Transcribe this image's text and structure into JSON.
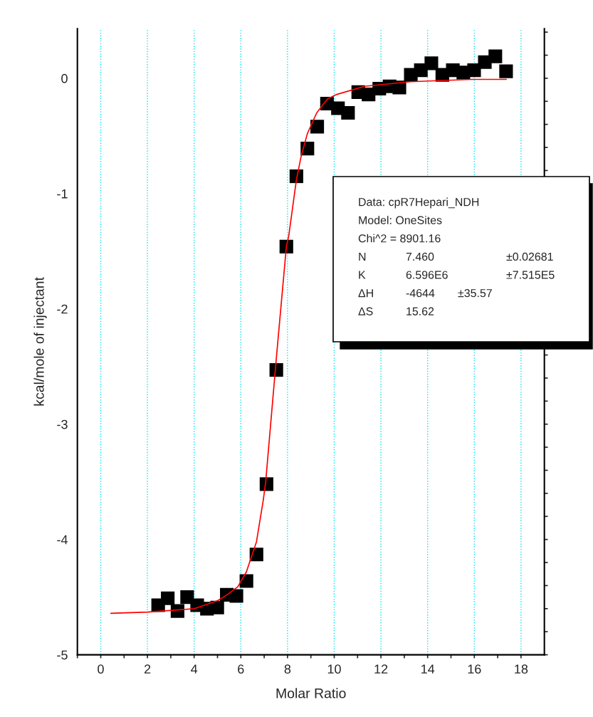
{
  "chart_data": {
    "type": "scatter",
    "xlabel": "Molar Ratio",
    "ylabel": "kcal/mole of injectant",
    "xlim": [
      -1,
      19
    ],
    "ylim": [
      -5,
      0.43
    ],
    "xticks": [
      0,
      2,
      4,
      6,
      8,
      10,
      12,
      14,
      16,
      18,
      {
        "value": -1,
        "label": null
      },
      {
        "value": 1,
        "label": null
      },
      {
        "value": 3,
        "label": null
      },
      {
        "value": 5,
        "label": null
      },
      {
        "value": 7,
        "label": null
      },
      {
        "value": 9,
        "label": null
      },
      {
        "value": 11,
        "label": null
      },
      {
        "value": 13,
        "label": null
      },
      {
        "value": 15,
        "label": null
      },
      {
        "value": 17,
        "label": null
      }
    ],
    "yticks": [
      -5,
      -4,
      -3,
      -2,
      -1,
      0,
      {
        "value": 0.4,
        "label": null
      },
      {
        "value": 0.2,
        "label": null
      },
      {
        "value": -0.2,
        "label": null
      },
      {
        "value": -0.4,
        "label": null
      },
      {
        "value": -0.6,
        "label": null
      },
      {
        "value": -0.8,
        "label": null
      },
      {
        "value": -1.2,
        "label": null
      },
      {
        "value": -1.4,
        "label": null
      },
      {
        "value": -1.6,
        "label": null
      },
      {
        "value": -1.8,
        "label": null
      },
      {
        "value": -2.2,
        "label": null
      },
      {
        "value": -2.4,
        "label": null
      },
      {
        "value": -2.6,
        "label": null
      },
      {
        "value": -2.8,
        "label": null
      },
      {
        "value": -3.2,
        "label": null
      },
      {
        "value": -3.4,
        "label": null
      },
      {
        "value": -3.6,
        "label": null
      },
      {
        "value": -3.8,
        "label": null
      },
      {
        "value": -4.2,
        "label": null
      },
      {
        "value": -4.4,
        "label": null
      },
      {
        "value": -4.6,
        "label": null
      },
      {
        "value": -4.8,
        "label": null
      }
    ],
    "grid": "x",
    "series": [
      {
        "marker": "square",
        "color": "#000000",
        "x": [
          2.46,
          2.87,
          3.29,
          3.7,
          4.13,
          4.55,
          4.99,
          5.4,
          5.81,
          6.24,
          6.67,
          7.1,
          7.52,
          7.95,
          8.38,
          8.85,
          9.27,
          9.69,
          10.16,
          10.59,
          11.03,
          11.47,
          11.93,
          12.37,
          12.79,
          13.28,
          13.71,
          14.16,
          14.63,
          15.08,
          15.53,
          15.99,
          16.45,
          16.9,
          17.36
        ],
        "values": [
          -4.57,
          -4.51,
          -4.62,
          -4.5,
          -4.57,
          -4.6,
          -4.59,
          -4.48,
          -4.49,
          -4.36,
          -4.13,
          -3.52,
          -2.53,
          -1.46,
          -0.85,
          -0.61,
          -0.42,
          -0.22,
          -0.26,
          -0.3,
          -0.12,
          -0.14,
          -0.09,
          -0.07,
          -0.08,
          0.03,
          0.07,
          0.13,
          0.03,
          0.07,
          0.05,
          0.07,
          0.14,
          0.19,
          0.06
        ]
      },
      {
        "type": "line",
        "color": "#ff0000",
        "x": [
          0.43,
          2.01,
          4.02,
          5.01,
          5.41,
          5.87,
          6.24,
          6.67,
          6.96,
          7.06,
          7.52,
          7.95,
          8.05,
          8.38,
          8.59,
          8.85,
          9.25,
          9.71,
          10.11,
          11.29,
          13.27,
          15.9,
          17.37
        ],
        "values": [
          -4.64,
          -4.63,
          -4.6,
          -4.53,
          -4.48,
          -4.41,
          -4.28,
          -4.02,
          -3.66,
          -3.51,
          -2.43,
          -1.46,
          -1.37,
          -0.88,
          -0.67,
          -0.48,
          -0.3,
          -0.18,
          -0.14,
          -0.07,
          -0.03,
          -0.01,
          -0.01
        ]
      }
    ],
    "annotations": [
      "Data: cpR7Hepari_NDH",
      "Model: OneSites",
      "Chi^2 = 8901.16",
      "N\t7.460\t\t±0.02681",
      "K\t6.596E6\t\t±7.515E5",
      "ΔH\t-4644\t±35.57",
      "ΔS\t15.62"
    ]
  }
}
